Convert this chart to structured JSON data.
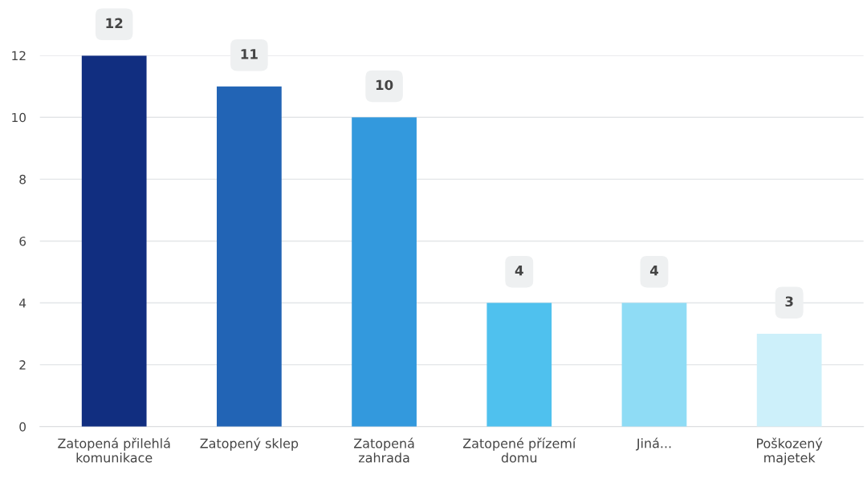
{
  "chart_data": {
    "type": "bar",
    "categories": [
      "Zatopená přilehlá\nkomunikace",
      "Zatopený sklep",
      "Zatopená\nzahrada",
      "Zatopené přízemí\ndomu",
      "Jiná...",
      "Poškozený\nmajetek"
    ],
    "values": [
      12,
      11,
      10,
      4,
      4,
      3
    ],
    "colors": [
      "#112e80",
      "#2264b5",
      "#3399dd",
      "#4fc1ee",
      "#8fdcf5",
      "#cdf0fa"
    ],
    "ylim": [
      0,
      12
    ],
    "yticks": [
      0,
      2,
      4,
      6,
      8,
      10,
      12
    ],
    "grid": "y",
    "legend": false,
    "data_labels": true
  }
}
